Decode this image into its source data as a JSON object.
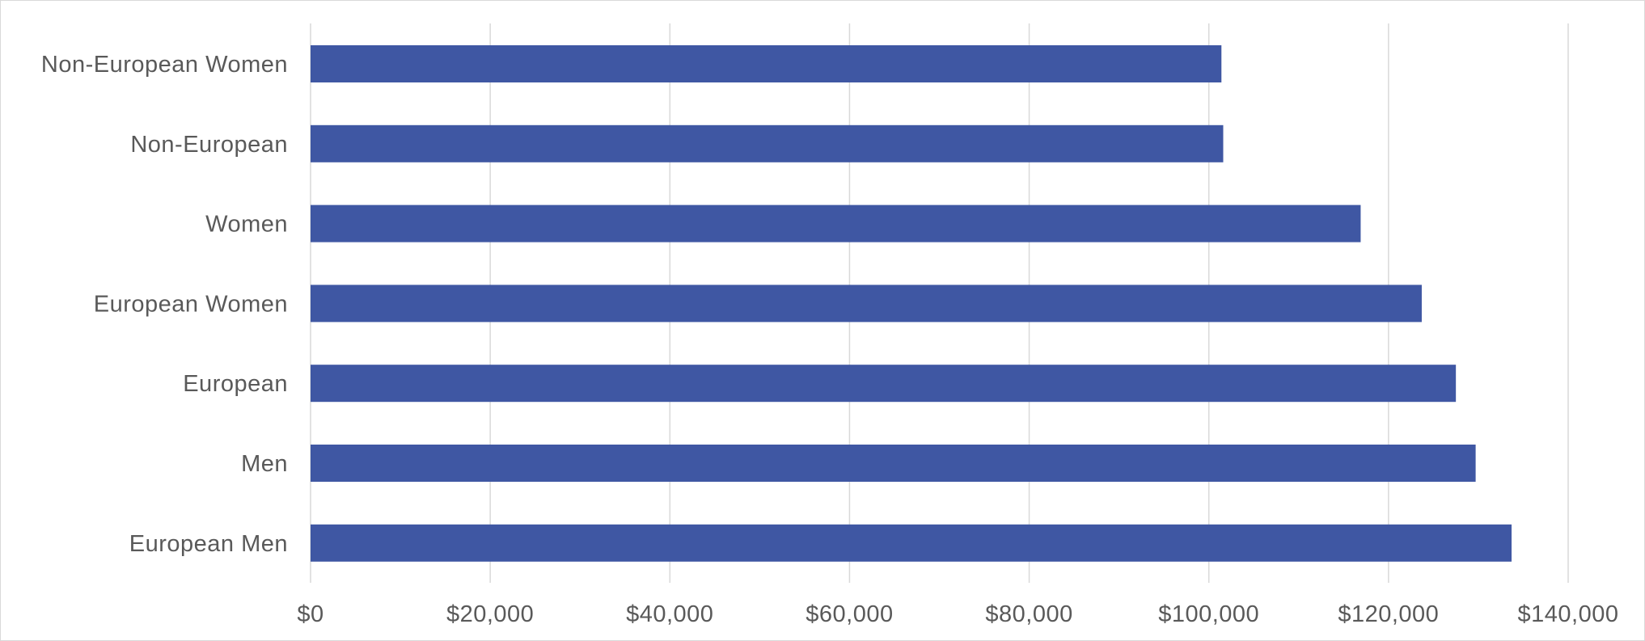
{
  "chart_data": {
    "type": "bar",
    "orientation": "horizontal",
    "categories": [
      "Non-European Women",
      "Non-European",
      "Women",
      "European Women",
      "European",
      "Men",
      "European Men"
    ],
    "values": [
      101400,
      101600,
      116900,
      123700,
      127500,
      129700,
      133700
    ],
    "x_ticks": [
      "$0",
      "$20,000",
      "$40,000",
      "$60,000",
      "$80,000",
      "$100,000",
      "$120,000",
      "$140,000"
    ],
    "xlim": [
      0,
      140000
    ],
    "grid": true,
    "bar_color": "#3f57a3"
  }
}
